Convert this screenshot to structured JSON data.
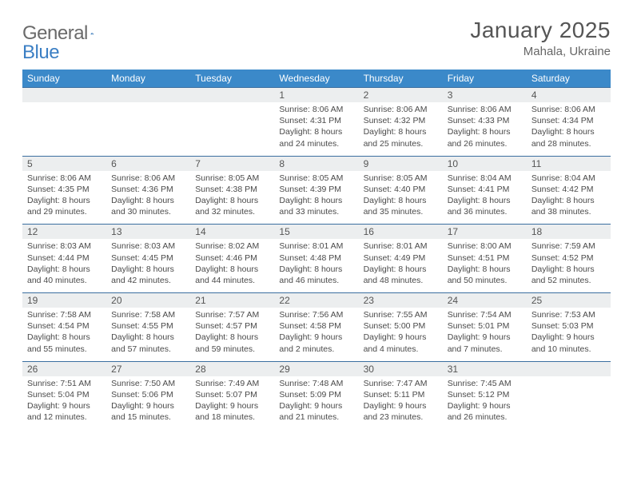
{
  "brand": {
    "name1": "General",
    "name2": "Blue"
  },
  "title": "January 2025",
  "location": "Mahala, Ukraine",
  "colors": {
    "header_bg": "#3b89c9",
    "row_border": "#3b6fa0",
    "daynum_bg": "#eceeef",
    "text": "#4a4a4a",
    "brand_gray": "#6a6a6a",
    "brand_blue": "#3b7fc4"
  },
  "daynames": [
    "Sunday",
    "Monday",
    "Tuesday",
    "Wednesday",
    "Thursday",
    "Friday",
    "Saturday"
  ],
  "weeks": [
    [
      {
        "n": "",
        "lines": [
          "",
          "",
          "",
          ""
        ]
      },
      {
        "n": "",
        "lines": [
          "",
          "",
          "",
          ""
        ]
      },
      {
        "n": "",
        "lines": [
          "",
          "",
          "",
          ""
        ]
      },
      {
        "n": "1",
        "lines": [
          "Sunrise: 8:06 AM",
          "Sunset: 4:31 PM",
          "Daylight: 8 hours",
          "and 24 minutes."
        ]
      },
      {
        "n": "2",
        "lines": [
          "Sunrise: 8:06 AM",
          "Sunset: 4:32 PM",
          "Daylight: 8 hours",
          "and 25 minutes."
        ]
      },
      {
        "n": "3",
        "lines": [
          "Sunrise: 8:06 AM",
          "Sunset: 4:33 PM",
          "Daylight: 8 hours",
          "and 26 minutes."
        ]
      },
      {
        "n": "4",
        "lines": [
          "Sunrise: 8:06 AM",
          "Sunset: 4:34 PM",
          "Daylight: 8 hours",
          "and 28 minutes."
        ]
      }
    ],
    [
      {
        "n": "5",
        "lines": [
          "Sunrise: 8:06 AM",
          "Sunset: 4:35 PM",
          "Daylight: 8 hours",
          "and 29 minutes."
        ]
      },
      {
        "n": "6",
        "lines": [
          "Sunrise: 8:06 AM",
          "Sunset: 4:36 PM",
          "Daylight: 8 hours",
          "and 30 minutes."
        ]
      },
      {
        "n": "7",
        "lines": [
          "Sunrise: 8:05 AM",
          "Sunset: 4:38 PM",
          "Daylight: 8 hours",
          "and 32 minutes."
        ]
      },
      {
        "n": "8",
        "lines": [
          "Sunrise: 8:05 AM",
          "Sunset: 4:39 PM",
          "Daylight: 8 hours",
          "and 33 minutes."
        ]
      },
      {
        "n": "9",
        "lines": [
          "Sunrise: 8:05 AM",
          "Sunset: 4:40 PM",
          "Daylight: 8 hours",
          "and 35 minutes."
        ]
      },
      {
        "n": "10",
        "lines": [
          "Sunrise: 8:04 AM",
          "Sunset: 4:41 PM",
          "Daylight: 8 hours",
          "and 36 minutes."
        ]
      },
      {
        "n": "11",
        "lines": [
          "Sunrise: 8:04 AM",
          "Sunset: 4:42 PM",
          "Daylight: 8 hours",
          "and 38 minutes."
        ]
      }
    ],
    [
      {
        "n": "12",
        "lines": [
          "Sunrise: 8:03 AM",
          "Sunset: 4:44 PM",
          "Daylight: 8 hours",
          "and 40 minutes."
        ]
      },
      {
        "n": "13",
        "lines": [
          "Sunrise: 8:03 AM",
          "Sunset: 4:45 PM",
          "Daylight: 8 hours",
          "and 42 minutes."
        ]
      },
      {
        "n": "14",
        "lines": [
          "Sunrise: 8:02 AM",
          "Sunset: 4:46 PM",
          "Daylight: 8 hours",
          "and 44 minutes."
        ]
      },
      {
        "n": "15",
        "lines": [
          "Sunrise: 8:01 AM",
          "Sunset: 4:48 PM",
          "Daylight: 8 hours",
          "and 46 minutes."
        ]
      },
      {
        "n": "16",
        "lines": [
          "Sunrise: 8:01 AM",
          "Sunset: 4:49 PM",
          "Daylight: 8 hours",
          "and 48 minutes."
        ]
      },
      {
        "n": "17",
        "lines": [
          "Sunrise: 8:00 AM",
          "Sunset: 4:51 PM",
          "Daylight: 8 hours",
          "and 50 minutes."
        ]
      },
      {
        "n": "18",
        "lines": [
          "Sunrise: 7:59 AM",
          "Sunset: 4:52 PM",
          "Daylight: 8 hours",
          "and 52 minutes."
        ]
      }
    ],
    [
      {
        "n": "19",
        "lines": [
          "Sunrise: 7:58 AM",
          "Sunset: 4:54 PM",
          "Daylight: 8 hours",
          "and 55 minutes."
        ]
      },
      {
        "n": "20",
        "lines": [
          "Sunrise: 7:58 AM",
          "Sunset: 4:55 PM",
          "Daylight: 8 hours",
          "and 57 minutes."
        ]
      },
      {
        "n": "21",
        "lines": [
          "Sunrise: 7:57 AM",
          "Sunset: 4:57 PM",
          "Daylight: 8 hours",
          "and 59 minutes."
        ]
      },
      {
        "n": "22",
        "lines": [
          "Sunrise: 7:56 AM",
          "Sunset: 4:58 PM",
          "Daylight: 9 hours",
          "and 2 minutes."
        ]
      },
      {
        "n": "23",
        "lines": [
          "Sunrise: 7:55 AM",
          "Sunset: 5:00 PM",
          "Daylight: 9 hours",
          "and 4 minutes."
        ]
      },
      {
        "n": "24",
        "lines": [
          "Sunrise: 7:54 AM",
          "Sunset: 5:01 PM",
          "Daylight: 9 hours",
          "and 7 minutes."
        ]
      },
      {
        "n": "25",
        "lines": [
          "Sunrise: 7:53 AM",
          "Sunset: 5:03 PM",
          "Daylight: 9 hours",
          "and 10 minutes."
        ]
      }
    ],
    [
      {
        "n": "26",
        "lines": [
          "Sunrise: 7:51 AM",
          "Sunset: 5:04 PM",
          "Daylight: 9 hours",
          "and 12 minutes."
        ]
      },
      {
        "n": "27",
        "lines": [
          "Sunrise: 7:50 AM",
          "Sunset: 5:06 PM",
          "Daylight: 9 hours",
          "and 15 minutes."
        ]
      },
      {
        "n": "28",
        "lines": [
          "Sunrise: 7:49 AM",
          "Sunset: 5:07 PM",
          "Daylight: 9 hours",
          "and 18 minutes."
        ]
      },
      {
        "n": "29",
        "lines": [
          "Sunrise: 7:48 AM",
          "Sunset: 5:09 PM",
          "Daylight: 9 hours",
          "and 21 minutes."
        ]
      },
      {
        "n": "30",
        "lines": [
          "Sunrise: 7:47 AM",
          "Sunset: 5:11 PM",
          "Daylight: 9 hours",
          "and 23 minutes."
        ]
      },
      {
        "n": "31",
        "lines": [
          "Sunrise: 7:45 AM",
          "Sunset: 5:12 PM",
          "Daylight: 9 hours",
          "and 26 minutes."
        ]
      },
      {
        "n": "",
        "lines": [
          "",
          "",
          "",
          ""
        ]
      }
    ]
  ]
}
